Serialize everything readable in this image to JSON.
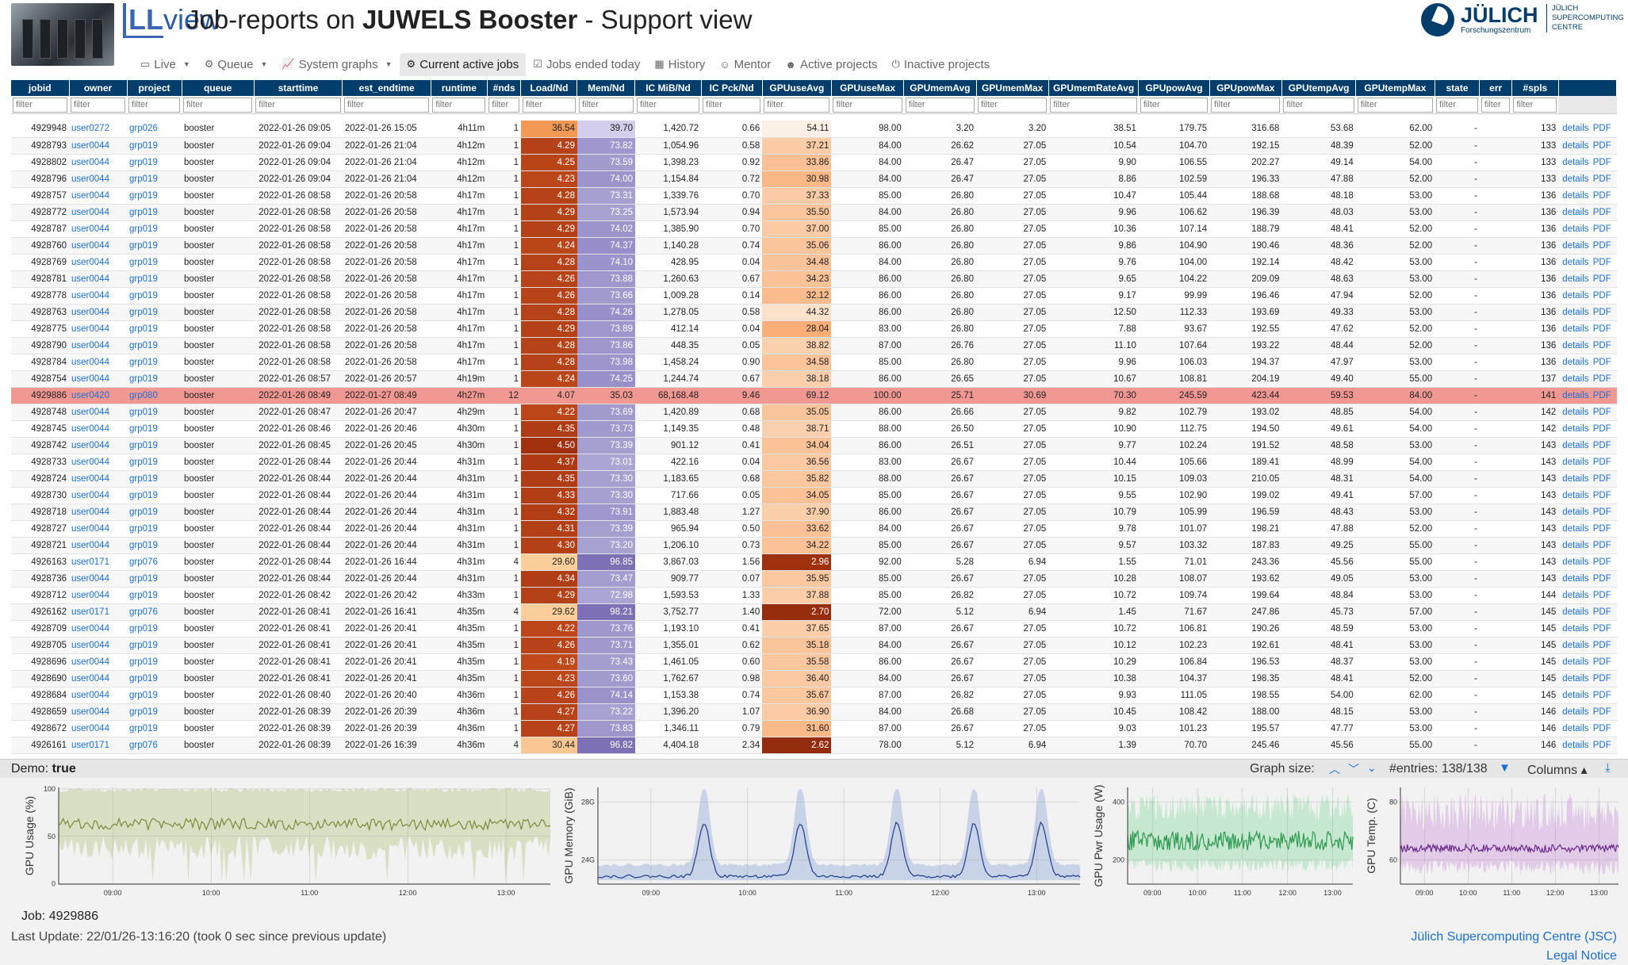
{
  "header": {
    "logo_ll": "LL",
    "logo_rest": "view",
    "title_prefix": "Job-reports on ",
    "title_bold": "JUWELS Booster",
    "title_suffix": " - Support view"
  },
  "juelich": {
    "name": "JÜLICH",
    "sub": "Forschungszentrum",
    "side1": "JÜLICH",
    "side2": "SUPERCOMPUTING",
    "side3": "CENTRE"
  },
  "nav": [
    {
      "label": "Live",
      "icon": "monitor-icon",
      "glyph": "▭",
      "caret": true,
      "active": false
    },
    {
      "label": "Queue",
      "icon": "gear-icon",
      "glyph": "⚙",
      "caret": true,
      "active": false
    },
    {
      "label": "System graphs",
      "icon": "chart-line-icon",
      "glyph": "📈",
      "caret": true,
      "active": false
    },
    {
      "label": "Current active jobs",
      "icon": "cog-icon",
      "glyph": "⚙",
      "caret": false,
      "active": true
    },
    {
      "label": "Jobs ended today",
      "icon": "calendar-check-icon",
      "glyph": "☑",
      "caret": false,
      "active": false
    },
    {
      "label": "History",
      "icon": "calendar-icon",
      "glyph": "▦",
      "caret": false,
      "active": false
    },
    {
      "label": "Mentor",
      "icon": "user-icon",
      "glyph": "☺",
      "caret": false,
      "active": false
    },
    {
      "label": "Active projects",
      "icon": "users-icon",
      "glyph": "☻",
      "caret": false,
      "active": false
    },
    {
      "label": "Inactive projects",
      "icon": "power-icon",
      "glyph": "⏻",
      "caret": false,
      "active": false
    }
  ],
  "columns": [
    "jobid",
    "owner",
    "project",
    "queue",
    "starttime",
    "est_endtime",
    "runtime",
    "#nds",
    "Load/Nd",
    "Mem/Nd",
    "IC MiB/Nd",
    "IC Pck/Nd",
    "GPUuseAvg",
    "GPUuseMax",
    "GPUmemAvg",
    "GPUmemMax",
    "GPUmemRateAvg",
    "GPUpowAvg",
    "GPUpowMax",
    "GPUtempAvg",
    "GPUtempMax",
    "state",
    "err",
    "#spls",
    ""
  ],
  "filter_placeholder": "filter",
  "link_details": "details",
  "link_pdf": "PDF",
  "rows": [
    [
      "4929948",
      "user0272",
      "grp026",
      "booster",
      "2022-01-26 09:05",
      "2022-01-26 15:05",
      "4h11m",
      "1",
      "36.54",
      "39.70",
      "1,420.72",
      "0.66",
      "54.11",
      "98.00",
      "3.20",
      "3.20",
      "38.51",
      "179.75",
      "316.68",
      "53.68",
      "62.00",
      "-",
      "",
      "133"
    ],
    [
      "4928793",
      "user0044",
      "grp019",
      "booster",
      "2022-01-26 09:04",
      "2022-01-26 21:04",
      "4h12m",
      "1",
      "4.29",
      "73.82",
      "1,054.96",
      "0.58",
      "37.21",
      "84.00",
      "26.62",
      "27.05",
      "10.54",
      "104.70",
      "192.15",
      "48.39",
      "52.00",
      "-",
      "",
      "133"
    ],
    [
      "4928802",
      "user0044",
      "grp019",
      "booster",
      "2022-01-26 09:04",
      "2022-01-26 21:04",
      "4h12m",
      "1",
      "4.25",
      "73.59",
      "1,398.23",
      "0.92",
      "33.86",
      "84.00",
      "26.47",
      "27.05",
      "9.90",
      "106.55",
      "202.27",
      "49.14",
      "54.00",
      "-",
      "",
      "133"
    ],
    [
      "4928796",
      "user0044",
      "grp019",
      "booster",
      "2022-01-26 09:04",
      "2022-01-26 21:04",
      "4h12m",
      "1",
      "4.23",
      "74.00",
      "1,154.84",
      "0.72",
      "30.98",
      "84.00",
      "26.47",
      "27.05",
      "8.86",
      "102.59",
      "196.33",
      "47.88",
      "52.00",
      "-",
      "",
      "133"
    ],
    [
      "4928757",
      "user0044",
      "grp019",
      "booster",
      "2022-01-26 08:58",
      "2022-01-26 20:58",
      "4h17m",
      "1",
      "4.28",
      "73.31",
      "1,339.76",
      "0.70",
      "37.33",
      "85.00",
      "26.80",
      "27.05",
      "10.47",
      "105.44",
      "188.68",
      "48.18",
      "53.00",
      "-",
      "",
      "136"
    ],
    [
      "4928772",
      "user0044",
      "grp019",
      "booster",
      "2022-01-26 08:58",
      "2022-01-26 20:58",
      "4h17m",
      "1",
      "4.29",
      "73.25",
      "1,573.94",
      "0.94",
      "35.50",
      "84.00",
      "26.80",
      "27.05",
      "9.96",
      "106.62",
      "196.39",
      "48.03",
      "53.00",
      "-",
      "",
      "136"
    ],
    [
      "4928787",
      "user0044",
      "grp019",
      "booster",
      "2022-01-26 08:58",
      "2022-01-26 20:58",
      "4h17m",
      "1",
      "4.29",
      "74.02",
      "1,385.90",
      "0.70",
      "37.00",
      "85.00",
      "26.80",
      "27.05",
      "10.36",
      "107.14",
      "188.79",
      "48.41",
      "52.00",
      "-",
      "",
      "136"
    ],
    [
      "4928760",
      "user0044",
      "grp019",
      "booster",
      "2022-01-26 08:58",
      "2022-01-26 20:58",
      "4h17m",
      "1",
      "4.24",
      "74.37",
      "1,140.28",
      "0.74",
      "35.06",
      "86.00",
      "26.80",
      "27.05",
      "9.86",
      "104.90",
      "190.46",
      "48.36",
      "52.00",
      "-",
      "",
      "136"
    ],
    [
      "4928769",
      "user0044",
      "grp019",
      "booster",
      "2022-01-26 08:58",
      "2022-01-26 20:58",
      "4h17m",
      "1",
      "4.28",
      "74.10",
      "428.95",
      "0.04",
      "34.48",
      "84.00",
      "26.80",
      "27.05",
      "9.76",
      "104.00",
      "192.14",
      "48.42",
      "53.00",
      "-",
      "",
      "136"
    ],
    [
      "4928781",
      "user0044",
      "grp019",
      "booster",
      "2022-01-26 08:58",
      "2022-01-26 20:58",
      "4h17m",
      "1",
      "4.26",
      "73.88",
      "1,260.63",
      "0.67",
      "34.23",
      "86.00",
      "26.80",
      "27.05",
      "9.65",
      "104.22",
      "209.09",
      "48.63",
      "53.00",
      "-",
      "",
      "136"
    ],
    [
      "4928778",
      "user0044",
      "grp019",
      "booster",
      "2022-01-26 08:58",
      "2022-01-26 20:58",
      "4h17m",
      "1",
      "4.26",
      "73.66",
      "1,009.28",
      "0.14",
      "32.12",
      "86.00",
      "26.80",
      "27.05",
      "9.17",
      "99.99",
      "196.46",
      "47.94",
      "52.00",
      "-",
      "",
      "136"
    ],
    [
      "4928763",
      "user0044",
      "grp019",
      "booster",
      "2022-01-26 08:58",
      "2022-01-26 20:58",
      "4h17m",
      "1",
      "4.28",
      "74.26",
      "1,278.05",
      "0.58",
      "44.32",
      "86.00",
      "26.80",
      "27.05",
      "12.50",
      "112.33",
      "193.69",
      "49.33",
      "53.00",
      "-",
      "",
      "136"
    ],
    [
      "4928775",
      "user0044",
      "grp019",
      "booster",
      "2022-01-26 08:58",
      "2022-01-26 20:58",
      "4h17m",
      "1",
      "4.29",
      "73.89",
      "412.14",
      "0.04",
      "28.04",
      "83.00",
      "26.80",
      "27.05",
      "7.88",
      "93.67",
      "192.55",
      "47.62",
      "52.00",
      "-",
      "",
      "136"
    ],
    [
      "4928790",
      "user0044",
      "grp019",
      "booster",
      "2022-01-26 08:58",
      "2022-01-26 20:58",
      "4h17m",
      "1",
      "4.28",
      "73.86",
      "448.35",
      "0.05",
      "38.82",
      "87.00",
      "26.76",
      "27.05",
      "11.10",
      "107.64",
      "193.22",
      "48.44",
      "52.00",
      "-",
      "",
      "136"
    ],
    [
      "4928784",
      "user0044",
      "grp019",
      "booster",
      "2022-01-26 08:58",
      "2022-01-26 20:58",
      "4h17m",
      "1",
      "4.28",
      "73.98",
      "1,458.24",
      "0.90",
      "34.58",
      "85.00",
      "26.80",
      "27.05",
      "9.96",
      "106.03",
      "194.37",
      "47.97",
      "53.00",
      "-",
      "",
      "136"
    ],
    [
      "4928754",
      "user0044",
      "grp019",
      "booster",
      "2022-01-26 08:57",
      "2022-01-26 20:57",
      "4h19m",
      "1",
      "4.24",
      "74.25",
      "1,244.74",
      "0.67",
      "38.18",
      "86.00",
      "26.65",
      "27.05",
      "10.67",
      "108.81",
      "204.19",
      "49.40",
      "55.00",
      "-",
      "",
      "137"
    ],
    [
      "4929886",
      "user0420",
      "grp080",
      "booster",
      "2022-01-26 08:49",
      "2022-01-27 08:49",
      "4h27m",
      "12",
      "4.07",
      "35.03",
      "68,168.48",
      "9.46",
      "69.12",
      "100.00",
      "25.71",
      "30.69",
      "70.30",
      "245.59",
      "423.44",
      "59.53",
      "84.00",
      "-",
      "",
      "141"
    ],
    [
      "4928748",
      "user0044",
      "grp019",
      "booster",
      "2022-01-26 08:47",
      "2022-01-26 20:47",
      "4h29m",
      "1",
      "4.22",
      "73.69",
      "1,420.89",
      "0.68",
      "35.05",
      "86.00",
      "26.66",
      "27.05",
      "9.82",
      "102.79",
      "193.02",
      "48.85",
      "54.00",
      "-",
      "",
      "142"
    ],
    [
      "4928745",
      "user0044",
      "grp019",
      "booster",
      "2022-01-26 08:46",
      "2022-01-26 20:46",
      "4h30m",
      "1",
      "4.35",
      "73.73",
      "1,149.35",
      "0.48",
      "38.71",
      "88.00",
      "26.50",
      "27.05",
      "10.90",
      "112.75",
      "194.50",
      "49.61",
      "54.00",
      "-",
      "",
      "142"
    ],
    [
      "4928742",
      "user0044",
      "grp019",
      "booster",
      "2022-01-26 08:45",
      "2022-01-26 20:45",
      "4h30m",
      "1",
      "4.50",
      "73.39",
      "901.12",
      "0.41",
      "34.04",
      "86.00",
      "26.51",
      "27.05",
      "9.77",
      "102.24",
      "191.52",
      "48.58",
      "53.00",
      "-",
      "",
      "143"
    ],
    [
      "4928733",
      "user0044",
      "grp019",
      "booster",
      "2022-01-26 08:44",
      "2022-01-26 20:44",
      "4h31m",
      "1",
      "4.37",
      "73.01",
      "422.16",
      "0.04",
      "36.56",
      "83.00",
      "26.67",
      "27.05",
      "10.44",
      "105.66",
      "189.41",
      "48.99",
      "54.00",
      "-",
      "",
      "143"
    ],
    [
      "4928724",
      "user0044",
      "grp019",
      "booster",
      "2022-01-26 08:44",
      "2022-01-26 20:44",
      "4h31m",
      "1",
      "4.35",
      "73.30",
      "1,183.65",
      "0.68",
      "35.82",
      "88.00",
      "26.67",
      "27.05",
      "10.15",
      "109.03",
      "210.05",
      "48.31",
      "54.00",
      "-",
      "",
      "143"
    ],
    [
      "4928730",
      "user0044",
      "grp019",
      "booster",
      "2022-01-26 08:44",
      "2022-01-26 20:44",
      "4h31m",
      "1",
      "4.33",
      "73.30",
      "717.66",
      "0.05",
      "34.05",
      "85.00",
      "26.67",
      "27.05",
      "9.55",
      "102.90",
      "199.02",
      "49.41",
      "57.00",
      "-",
      "",
      "143"
    ],
    [
      "4928718",
      "user0044",
      "grp019",
      "booster",
      "2022-01-26 08:44",
      "2022-01-26 20:44",
      "4h31m",
      "1",
      "4.32",
      "73.91",
      "1,883.48",
      "1.27",
      "37.90",
      "86.00",
      "26.67",
      "27.05",
      "10.79",
      "105.99",
      "196.59",
      "48.43",
      "53.00",
      "-",
      "",
      "143"
    ],
    [
      "4928727",
      "user0044",
      "grp019",
      "booster",
      "2022-01-26 08:44",
      "2022-01-26 20:44",
      "4h31m",
      "1",
      "4.31",
      "73.39",
      "965.94",
      "0.50",
      "33.62",
      "84.00",
      "26.67",
      "27.05",
      "9.78",
      "101.07",
      "198.21",
      "47.88",
      "52.00",
      "-",
      "",
      "143"
    ],
    [
      "4928721",
      "user0044",
      "grp019",
      "booster",
      "2022-01-26 08:44",
      "2022-01-26 20:44",
      "4h31m",
      "1",
      "4.30",
      "73.20",
      "1,206.10",
      "0.73",
      "34.22",
      "85.00",
      "26.67",
      "27.05",
      "9.57",
      "103.32",
      "187.83",
      "49.25",
      "55.00",
      "-",
      "",
      "143"
    ],
    [
      "4926163",
      "user0171",
      "grp076",
      "booster",
      "2022-01-26 08:44",
      "2022-01-26 16:44",
      "4h31m",
      "4",
      "29.60",
      "96.85",
      "3,867.03",
      "1.56",
      "2.96",
      "92.00",
      "5.28",
      "6.94",
      "1.55",
      "71.01",
      "243.36",
      "45.56",
      "55.00",
      "-",
      "",
      "143"
    ],
    [
      "4928736",
      "user0044",
      "grp019",
      "booster",
      "2022-01-26 08:44",
      "2022-01-26 20:44",
      "4h31m",
      "1",
      "4.34",
      "73.47",
      "909.77",
      "0.07",
      "35.95",
      "85.00",
      "26.67",
      "27.05",
      "10.28",
      "108.07",
      "193.62",
      "49.05",
      "53.00",
      "-",
      "",
      "143"
    ],
    [
      "4928712",
      "user0044",
      "grp019",
      "booster",
      "2022-01-26 08:42",
      "2022-01-26 20:42",
      "4h33m",
      "1",
      "4.29",
      "72.98",
      "1,593.53",
      "1.33",
      "37.88",
      "85.00",
      "26.82",
      "27.05",
      "10.72",
      "109.74",
      "199.64",
      "48.84",
      "53.00",
      "-",
      "",
      "144"
    ],
    [
      "4926162",
      "user0171",
      "grp076",
      "booster",
      "2022-01-26 08:41",
      "2022-01-26 16:41",
      "4h35m",
      "4",
      "29.62",
      "98.21",
      "3,752.77",
      "1.40",
      "2.70",
      "72.00",
      "5.12",
      "6.94",
      "1.45",
      "71.67",
      "247.86",
      "45.73",
      "57.00",
      "-",
      "",
      "145"
    ],
    [
      "4928709",
      "user0044",
      "grp019",
      "booster",
      "2022-01-26 08:41",
      "2022-01-26 20:41",
      "4h35m",
      "1",
      "4.22",
      "73.76",
      "1,193.10",
      "0.41",
      "37.65",
      "87.00",
      "26.67",
      "27.05",
      "10.72",
      "106.81",
      "190.26",
      "48.59",
      "53.00",
      "-",
      "",
      "145"
    ],
    [
      "4928705",
      "user0044",
      "grp019",
      "booster",
      "2022-01-26 08:41",
      "2022-01-26 20:41",
      "4h35m",
      "1",
      "4.26",
      "73.71",
      "1,355.01",
      "0.62",
      "35.18",
      "84.00",
      "26.67",
      "27.05",
      "10.12",
      "102.23",
      "192.61",
      "48.41",
      "53.00",
      "-",
      "",
      "145"
    ],
    [
      "4928696",
      "user0044",
      "grp019",
      "booster",
      "2022-01-26 08:41",
      "2022-01-26 20:41",
      "4h35m",
      "1",
      "4.19",
      "73.43",
      "1,461.05",
      "0.60",
      "35.58",
      "86.00",
      "26.67",
      "27.05",
      "10.29",
      "106.84",
      "196.53",
      "48.37",
      "53.00",
      "-",
      "",
      "145"
    ],
    [
      "4928690",
      "user0044",
      "grp019",
      "booster",
      "2022-01-26 08:41",
      "2022-01-26 20:41",
      "4h35m",
      "1",
      "4.23",
      "73.60",
      "1,762.67",
      "0.98",
      "36.40",
      "84.00",
      "26.67",
      "27.05",
      "10.38",
      "104.37",
      "198.35",
      "48.41",
      "52.00",
      "-",
      "",
      "145"
    ],
    [
      "4928684",
      "user0044",
      "grp019",
      "booster",
      "2022-01-26 08:40",
      "2022-01-26 20:40",
      "4h36m",
      "1",
      "4.26",
      "74.14",
      "1,153.38",
      "0.74",
      "35.67",
      "87.00",
      "26.82",
      "27.05",
      "9.93",
      "111.05",
      "198.55",
      "54.00",
      "62.00",
      "-",
      "",
      "145"
    ],
    [
      "4928659",
      "user0044",
      "grp019",
      "booster",
      "2022-01-26 08:39",
      "2022-01-26 20:39",
      "4h36m",
      "1",
      "4.27",
      "73.22",
      "1,396.20",
      "1.07",
      "36.90",
      "84.00",
      "26.68",
      "27.05",
      "10.45",
      "108.42",
      "188.00",
      "48.15",
      "53.00",
      "-",
      "",
      "146"
    ],
    [
      "4928672",
      "user0044",
      "grp019",
      "booster",
      "2022-01-26 08:39",
      "2022-01-26 20:39",
      "4h36m",
      "1",
      "4.27",
      "73.83",
      "1,346.11",
      "0.79",
      "31.60",
      "87.00",
      "26.67",
      "27.05",
      "9.03",
      "101.23",
      "195.57",
      "47.77",
      "53.00",
      "-",
      "",
      "146"
    ],
    [
      "4926161",
      "user0171",
      "grp076",
      "booster",
      "2022-01-26 08:39",
      "2022-01-26 16:39",
      "4h36m",
      "4",
      "30.44",
      "96.82",
      "4,404.18",
      "2.34",
      "2.62",
      "78.00",
      "5.12",
      "6.94",
      "1.39",
      "70.70",
      "245.46",
      "45.56",
      "55.00",
      "-",
      "",
      "146"
    ]
  ],
  "highlight_row": "4929886",
  "statusbar": {
    "demo_label": "Demo:",
    "demo_value": "true",
    "graph_size": "Graph size:",
    "entries": "#entries: 138/138",
    "columns": "Columns"
  },
  "graphs": [
    {
      "ylabel": "GPU Usage (%)",
      "yticks": [
        "100",
        "50",
        "0"
      ],
      "xticks": [
        "09:00",
        "10:00",
        "11:00",
        "12:00",
        "13:00"
      ],
      "color": "#7a8a3a",
      "band": "#d9dfc3"
    },
    {
      "ylabel": "GPU Memory (GiB)",
      "yticks": [
        "28G",
        "24G"
      ],
      "xticks": [
        "09:00",
        "10:00",
        "11:00",
        "12:00",
        "13:00"
      ],
      "color": "#1e3b8a",
      "band": "#c8d3e8"
    },
    {
      "ylabel": "GPU Pwr Usage (W)",
      "yticks": [
        "400",
        "200"
      ],
      "xticks": [
        "09:00",
        "10:00",
        "11:00",
        "12:00",
        "13:00"
      ],
      "color": "#2f9a52",
      "band": "#c6e8d0"
    },
    {
      "ylabel": "GPU Temp. (C)",
      "yticks": [
        "80",
        "60"
      ],
      "xticks": [
        "09:00",
        "10:00",
        "11:00",
        "12:00",
        "13:00"
      ],
      "color": "#6a2a8a",
      "band": "#e2cbe8"
    }
  ],
  "job_label": "Job: 4929886",
  "footer": {
    "last_update": "Last Update: 22/01/26-13:16:20 (took 0 sec since previous update)",
    "jsc": "Jülich Supercomputing Centre (JSC)",
    "legal": "Legal Notice"
  }
}
